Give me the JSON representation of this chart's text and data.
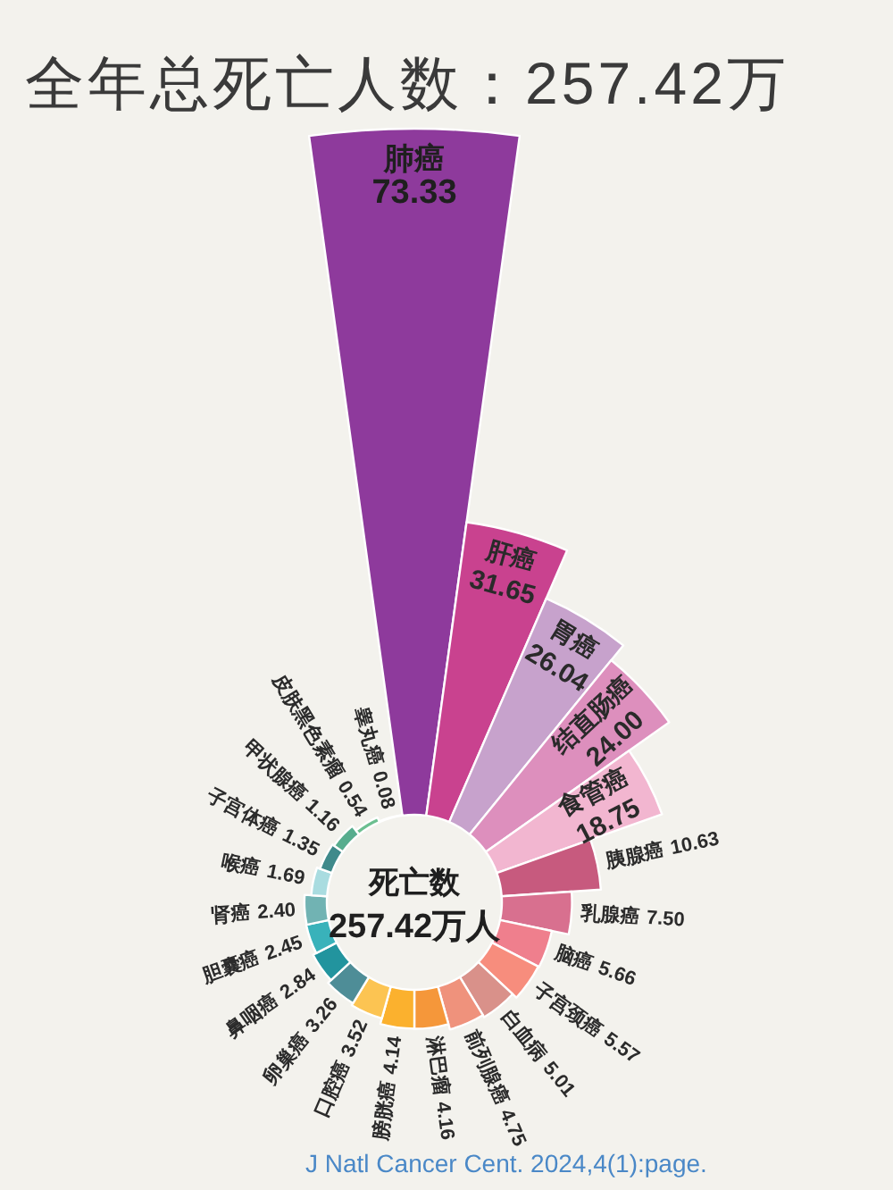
{
  "chart_data": {
    "type": "other",
    "title": "全年总死亡人数：257.42万",
    "categories": [
      "肺癌",
      "肝癌",
      "胃癌",
      "结直肠癌",
      "食管癌",
      "胰腺癌",
      "乳腺癌",
      "脑癌",
      "子宫颈癌",
      "白血病",
      "前列腺癌",
      "淋巴瘤",
      "膀胱癌",
      "口腔癌",
      "卵巢癌",
      "鼻咽癌",
      "胆囊癌",
      "肾癌",
      "喉癌",
      "子宫体癌",
      "甲状腺癌",
      "皮肤黑色素瘤",
      "睾丸癌"
    ],
    "values": [
      73.33,
      31.65,
      26.04,
      24.0,
      18.75,
      10.63,
      7.5,
      5.66,
      5.57,
      5.01,
      4.75,
      4.16,
      4.14,
      3.52,
      3.26,
      2.84,
      2.45,
      2.4,
      1.69,
      1.35,
      1.16,
      0.54,
      0.08
    ],
    "value_labels": [
      "73.33",
      "31.65",
      "26.04",
      "24.00",
      "18.75",
      "10.63",
      "7.50",
      "5.66",
      "5.57",
      "5.01",
      "4.75",
      "4.16",
      "4.14",
      "3.52",
      "3.26",
      "2.84",
      "2.45",
      "2.40",
      "1.69",
      "1.35",
      "1.16",
      "0.54",
      "0.08"
    ],
    "colors": [
      "#8e3a9c",
      "#c9428f",
      "#c7a2cc",
      "#dd8fbd",
      "#f2b6d0",
      "#c75a7e",
      "#d8708f",
      "#ef7f8d",
      "#f78d7d",
      "#d9918a",
      "#ef927c",
      "#f5973a",
      "#fbb12e",
      "#fcc452",
      "#4e8d97",
      "#22949e",
      "#39b2ba",
      "#71b3b3",
      "#a9dce0",
      "#3f8a8b",
      "#57ad8e",
      "#6cbf90",
      "#4caf6a"
    ],
    "annotations": [
      "死亡数",
      "257.42万人",
      "J Natl Cancer Cent. 2024,4(1):page."
    ]
  }
}
